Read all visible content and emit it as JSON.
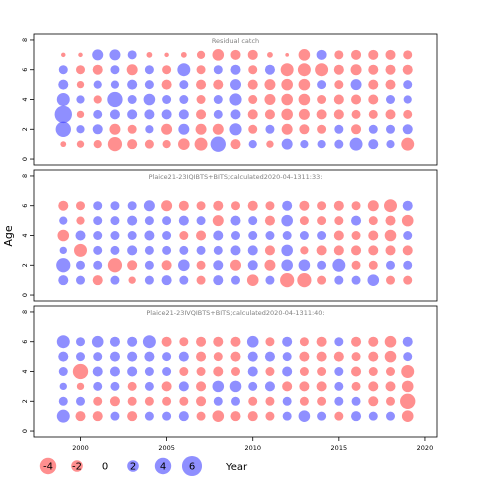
{
  "chart_data": {
    "type": "scatter",
    "ylabel": "Age",
    "xlim": [
      1997.3,
      2020.7
    ],
    "ylim": [
      -0.4,
      8.4
    ],
    "xticks": [
      2000,
      2005,
      2010,
      2015,
      2020
    ],
    "yticks": [
      0,
      2,
      4,
      6,
      8
    ],
    "colors": {
      "positive": "#3333ff",
      "negative": "#ff3333",
      "axis": "#000000",
      "panel_title": "#808080"
    },
    "legend": {
      "label": "Year",
      "placement": "bottom",
      "items": [
        {
          "value": -4,
          "label": "-4"
        },
        {
          "value": -2,
          "label": "-2"
        },
        {
          "value": 0,
          "label": "0"
        },
        {
          "value": 2,
          "label": "2"
        },
        {
          "value": 4,
          "label": "4"
        },
        {
          "value": 6,
          "label": "6"
        }
      ]
    },
    "years": [
      1999,
      2000,
      2001,
      2002,
      2003,
      2004,
      2005,
      2006,
      2007,
      2008,
      2009,
      2010,
      2011,
      2012,
      2013,
      2014,
      2015,
      2016,
      2017,
      2018,
      2019
    ],
    "ages": [
      1,
      2,
      3,
      4,
      5,
      6,
      7
    ],
    "panels": [
      {
        "title": "Residual catch",
        "values": [
          [
            -0.5,
            3.5,
            4.5,
            2.5,
            1.5,
            1.2,
            -0.3
          ],
          [
            -0.8,
            1.0,
            -0.8,
            1.0,
            -0.8,
            -1.2,
            -0.3
          ],
          [
            -1.0,
            1.5,
            1.2,
            -1.0,
            1.0,
            -1.5,
            1.8
          ],
          [
            -3.0,
            -1.8,
            1.5,
            3.5,
            1.0,
            1.2,
            1.8
          ],
          [
            -1.5,
            -1.2,
            1.5,
            1.2,
            1.5,
            -1.8,
            1.2
          ],
          [
            -1.2,
            1.0,
            1.5,
            2.0,
            1.2,
            1.2,
            -0.5
          ],
          [
            -1.0,
            -1.8,
            1.5,
            1.2,
            -1.5,
            -1.2,
            -0.3
          ],
          [
            -2.0,
            1.8,
            1.5,
            1.2,
            1.2,
            2.5,
            -0.5
          ],
          [
            -2.5,
            -1.8,
            -1.5,
            -1.2,
            -1.5,
            -1.2,
            -1.0
          ],
          [
            3.5,
            -1.8,
            1.2,
            1.2,
            -1.5,
            1.2,
            -2.0
          ],
          [
            -1.5,
            2.2,
            1.5,
            2.2,
            1.8,
            1.5,
            -1.5
          ],
          [
            1.0,
            -1.2,
            -1.5,
            -1.2,
            -1.5,
            -1.2,
            -1.5
          ],
          [
            -0.8,
            1.2,
            -1.5,
            -1.8,
            -1.8,
            1.5,
            -0.5
          ],
          [
            1.8,
            -1.8,
            -2.0,
            -2.0,
            -2.0,
            -2.5,
            -0.2
          ],
          [
            1.0,
            -1.5,
            -1.8,
            -2.0,
            -2.0,
            -2.5,
            -2.0
          ],
          [
            1.0,
            -1.2,
            -1.5,
            -1.2,
            1.2,
            -2.5,
            1.5
          ],
          [
            1.2,
            1.2,
            -1.5,
            -1.5,
            -1.2,
            -1.5,
            -1.2
          ],
          [
            2.5,
            -1.5,
            -1.2,
            -1.5,
            1.8,
            -1.8,
            -1.5
          ],
          [
            1.5,
            1.2,
            -1.2,
            -1.5,
            -1.5,
            -1.5,
            -1.5
          ],
          [
            1.0,
            1.2,
            -1.5,
            1.2,
            -1.5,
            -1.5,
            -1.5
          ],
          [
            -2.5,
            1.5,
            -1.2,
            1.0,
            1.2,
            -1.5,
            -1.2
          ]
        ]
      },
      {
        "title": "Plaice21-23IQIBTS+BITS;calculated2020-04-1311:33:",
        "values": [
          [
            1.5,
            3.0,
            0.8,
            -2.0,
            1.0,
            -1.5,
            0.0
          ],
          [
            1.2,
            1.2,
            -2.5,
            1.5,
            -1.0,
            -1.2,
            0.0
          ],
          [
            -1.5,
            1.2,
            1.2,
            1.2,
            1.2,
            1.2,
            0.0
          ],
          [
            1.2,
            -3.0,
            1.2,
            1.2,
            1.2,
            1.2,
            0.0
          ],
          [
            -0.8,
            -1.5,
            1.5,
            1.2,
            1.5,
            1.2,
            0.0
          ],
          [
            1.2,
            1.2,
            1.2,
            1.5,
            1.2,
            1.8,
            0.0
          ],
          [
            1.5,
            -1.5,
            1.2,
            1.2,
            1.2,
            -1.8,
            0.0
          ],
          [
            1.2,
            2.0,
            1.2,
            -1.2,
            1.5,
            -1.5,
            0.0
          ],
          [
            -1.2,
            -1.2,
            1.2,
            -1.5,
            1.2,
            -1.2,
            0.0
          ],
          [
            1.5,
            1.5,
            1.2,
            1.5,
            -1.8,
            -1.5,
            0.0
          ],
          [
            1.2,
            -1.8,
            1.5,
            1.2,
            1.5,
            -1.2,
            0.0
          ],
          [
            -2.0,
            1.5,
            1.5,
            1.2,
            1.2,
            -1.5,
            0.0
          ],
          [
            1.2,
            -1.8,
            -1.5,
            1.2,
            -1.5,
            -1.2,
            0.0
          ],
          [
            -3.0,
            2.0,
            2.0,
            1.2,
            2.0,
            1.5,
            0.0
          ],
          [
            -3.0,
            2.0,
            -1.0,
            1.2,
            -1.2,
            -1.5,
            0.0
          ],
          [
            -1.2,
            1.2,
            -1.5,
            1.2,
            -1.2,
            -1.2,
            0.0
          ],
          [
            1.2,
            2.5,
            -1.5,
            -1.5,
            -1.2,
            -1.5,
            0.0
          ],
          [
            1.2,
            -1.2,
            -1.5,
            -1.2,
            1.5,
            -1.2,
            0.0
          ],
          [
            2.0,
            -1.2,
            -1.5,
            -1.5,
            -1.2,
            -1.8,
            0.0
          ],
          [
            -1.2,
            1.2,
            -1.5,
            -2.0,
            -1.5,
            -2.5,
            0.0
          ],
          [
            -1.2,
            1.2,
            -1.5,
            1.2,
            -2.0,
            1.5,
            0.0
          ]
        ]
      },
      {
        "title": "Plaice21-23IVQIBTS+BITS;calculated2020-04-1311:40:",
        "values": [
          [
            2.5,
            1.2,
            0.8,
            1.2,
            1.5,
            2.5,
            0.0
          ],
          [
            -1.5,
            1.2,
            -0.8,
            -3.5,
            1.2,
            1.2,
            0.0
          ],
          [
            -1.5,
            -1.2,
            1.2,
            1.5,
            1.2,
            2.0,
            0.0
          ],
          [
            1.2,
            -1.5,
            1.2,
            1.5,
            1.5,
            1.5,
            0.0
          ],
          [
            -1.5,
            -1.2,
            -1.2,
            1.5,
            1.5,
            1.5,
            0.0
          ],
          [
            1.2,
            -1.2,
            1.2,
            1.2,
            1.5,
            2.5,
            0.0
          ],
          [
            1.2,
            -1.2,
            -1.5,
            1.2,
            1.2,
            -1.5,
            0.0
          ],
          [
            1.5,
            -1.2,
            1.5,
            -1.2,
            1.5,
            -1.2,
            0.0
          ],
          [
            -1.2,
            -1.5,
            -1.5,
            -1.2,
            -1.5,
            -1.5,
            0.0
          ],
          [
            -2.0,
            1.2,
            2.0,
            -1.5,
            -1.2,
            -1.5,
            0.0
          ],
          [
            -1.5,
            1.2,
            2.0,
            -1.2,
            -1.5,
            -1.5,
            0.0
          ],
          [
            -1.5,
            -1.2,
            1.2,
            1.5,
            1.5,
            2.0,
            0.0
          ],
          [
            -1.2,
            -1.2,
            1.5,
            -1.2,
            1.5,
            -1.2,
            0.0
          ],
          [
            1.2,
            1.2,
            -1.5,
            1.5,
            1.2,
            1.5,
            0.0
          ],
          [
            2.0,
            -1.2,
            -1.5,
            -1.2,
            -1.5,
            -1.2,
            0.0
          ],
          [
            1.2,
            -1.2,
            -1.5,
            -1.2,
            -1.5,
            -1.5,
            0.0
          ],
          [
            -1.2,
            1.2,
            1.2,
            1.2,
            -1.5,
            1.2,
            0.0
          ],
          [
            1.5,
            1.2,
            -1.2,
            -1.5,
            -1.2,
            -1.5,
            0.0
          ],
          [
            1.2,
            -1.5,
            -1.5,
            -1.2,
            -1.5,
            -1.5,
            0.0
          ],
          [
            1.2,
            -1.2,
            -1.5,
            -1.2,
            -2.0,
            -2.0,
            0.0
          ],
          [
            -2.0,
            -3.5,
            -2.0,
            -2.5,
            1.2,
            1.5,
            0.0
          ]
        ]
      }
    ]
  }
}
